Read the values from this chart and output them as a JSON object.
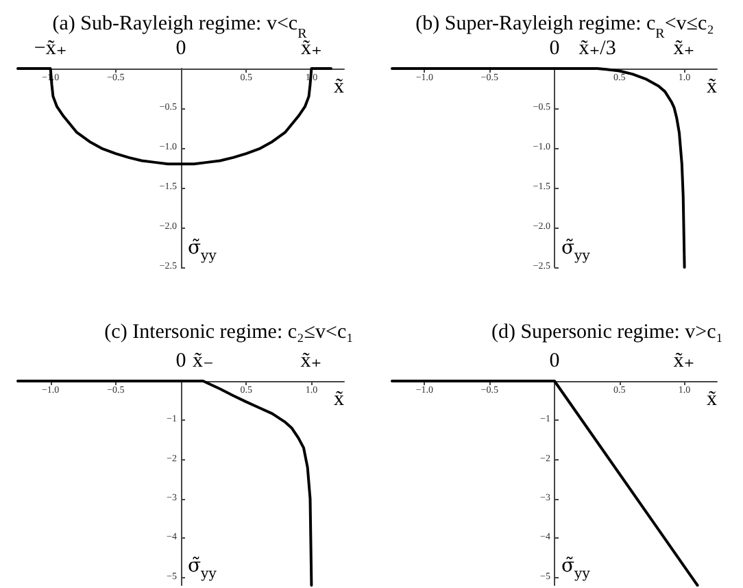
{
  "chart_data": [
    {
      "type": "line",
      "title": "(a) Sub-Rayleigh regime: v<c$_{R}$",
      "xlabel": "x̃",
      "ylabel": "σ̃$_{yy}$",
      "color": "#000000",
      "marker": "none",
      "x": [
        -1.25,
        -1,
        -0.99,
        -0.98,
        -0.95,
        -0.9,
        -0.8,
        -0.7,
        -0.6,
        -0.5,
        -0.4,
        -0.3,
        -0.2,
        -0.1,
        0,
        0.1,
        0.2,
        0.3,
        0.4,
        0.5,
        0.6,
        0.7,
        0.8,
        0.9,
        0.95,
        0.98,
        0.99,
        1,
        1.15
      ],
      "values": [
        0,
        0,
        -0.2,
        -0.35,
        -0.48,
        -0.6,
        -0.8,
        -0.92,
        -1.01,
        -1.07,
        -1.12,
        -1.16,
        -1.18,
        -1.2,
        -1.2,
        -1.2,
        -1.18,
        -1.16,
        -1.12,
        -1.07,
        -1.01,
        -0.92,
        -0.8,
        -0.6,
        -0.48,
        -0.35,
        -0.2,
        0,
        0
      ],
      "xlim": [
        -1.25,
        1.25
      ],
      "ylim": [
        -2.5,
        0
      ],
      "xticks": [
        {
          "value": -1,
          "label": "−1.0"
        },
        {
          "value": -0.5,
          "label": "−0.5"
        },
        {
          "value": 0.5,
          "label": "0.5"
        },
        {
          "value": 1,
          "label": "1.0"
        }
      ],
      "yticks": [
        {
          "value": -2.5,
          "label": "−2.5"
        },
        {
          "value": -2,
          "label": "−2.0"
        },
        {
          "value": -1.5,
          "label": "−1.5"
        },
        {
          "value": -1,
          "label": "−1.0"
        },
        {
          "value": -0.5,
          "label": "−0.5"
        }
      ],
      "annotations": [
        {
          "text": "−x̃₊",
          "x": -1,
          "y": 0
        },
        "0",
        {
          "text": "x̃₊",
          "x": 1,
          "y": 0
        }
      ]
    },
    {
      "type": "line",
      "title": "(b) Super-Rayleigh regime: c$_{R}$<v≤c₂",
      "xlabel": "x̃",
      "ylabel": "σ̃$_{yy}$",
      "color": "#000000",
      "marker": "none",
      "x": [
        -1.25,
        0.33,
        0.4,
        0.5,
        0.6,
        0.7,
        0.8,
        0.85,
        0.9,
        0.92,
        0.94,
        0.96,
        0.98,
        0.99,
        1
      ],
      "values": [
        0,
        0,
        -0.01,
        -0.03,
        -0.07,
        -0.13,
        -0.22,
        -0.29,
        -0.42,
        -0.49,
        -0.62,
        -0.81,
        -1.2,
        -1.6,
        -2.5
      ],
      "xlim": [
        -1.25,
        1.25
      ],
      "ylim": [
        -2.5,
        0
      ],
      "xticks": [
        {
          "value": -1,
          "label": "−1.0"
        },
        {
          "value": -0.5,
          "label": "−0.5"
        },
        {
          "value": 0.5,
          "label": "0.5"
        },
        {
          "value": 1,
          "label": "1.0"
        }
      ],
      "yticks": [
        {
          "value": -2.5,
          "label": "−2.5"
        },
        {
          "value": -2,
          "label": "−2.0"
        },
        {
          "value": -1.5,
          "label": "−1.5"
        },
        {
          "value": -1,
          "label": "−1.0"
        },
        {
          "value": -0.5,
          "label": "−0.5"
        }
      ],
      "annotations": [
        {
          "text": "0",
          "x": 0,
          "y": 0
        },
        {
          "text": "x̃₊/3",
          "x": 0.33,
          "y": 0
        },
        "x̃₊"
      ]
    },
    {
      "type": "line",
      "title": "(c) Intersonic regime: c₂≤v<c₁",
      "xlabel": "x̃",
      "ylabel": "σ̃$_{yy}$",
      "color": "#000000",
      "marker": "none",
      "x": [
        -1.25,
        0.17,
        0.3,
        0.4,
        0.5,
        0.6,
        0.7,
        0.8,
        0.85,
        0.9,
        0.94,
        0.97,
        0.99,
        1
      ],
      "values": [
        0,
        0,
        -0.2,
        -0.37,
        -0.53,
        -0.68,
        -0.83,
        -1.05,
        -1.2,
        -1.45,
        -1.7,
        -2.2,
        -3.0,
        -5.2
      ],
      "xlim": [
        -1.25,
        1.25
      ],
      "ylim": [
        -5.2,
        0
      ],
      "xticks": [
        {
          "value": -1,
          "label": "−1.0"
        },
        {
          "value": -0.5,
          "label": "−0.5"
        },
        {
          "value": 0.5,
          "label": "0.5"
        },
        {
          "value": 1,
          "label": "1.0"
        }
      ],
      "yticks": [
        {
          "value": -5,
          "label": "−5"
        },
        {
          "value": -4,
          "label": "−4"
        },
        {
          "value": -3,
          "label": "−3"
        },
        {
          "value": -2,
          "label": "−2"
        },
        {
          "value": -1,
          "label": "−1"
        }
      ],
      "annotations": [
        {
          "text": "0",
          "x": 0,
          "y": 0
        },
        {
          "text": "x̃₋",
          "x": 0.17,
          "y": 0
        },
        "x̃₊"
      ]
    },
    {
      "type": "line",
      "title": "(d) Supersonic regime: v>c₁",
      "xlabel": "x̃",
      "ylabel": "σ̃$_{yy}$",
      "color": "#000000",
      "marker": "none",
      "x": [
        -1.25,
        0,
        1.1
      ],
      "values": [
        0,
        0,
        -5.2
      ],
      "xlim": [
        -1.25,
        1.25
      ],
      "ylim": [
        -5.2,
        0
      ],
      "xticks": [
        {
          "value": -1,
          "label": "−1.0"
        },
        {
          "value": -0.5,
          "label": "−0.5"
        },
        {
          "value": 0.5,
          "label": "0.5"
        },
        {
          "value": 1,
          "label": "1.0"
        }
      ],
      "yticks": [
        {
          "value": -5,
          "label": "−5"
        },
        {
          "value": -4,
          "label": "−4"
        },
        {
          "value": -3,
          "label": "−3"
        },
        {
          "value": -2,
          "label": "−2"
        },
        {
          "value": -1,
          "label": "−1"
        }
      ],
      "annotations": [
        {
          "text": "0",
          "x": 0,
          "y": 0
        },
        "x̃₊"
      ]
    }
  ]
}
